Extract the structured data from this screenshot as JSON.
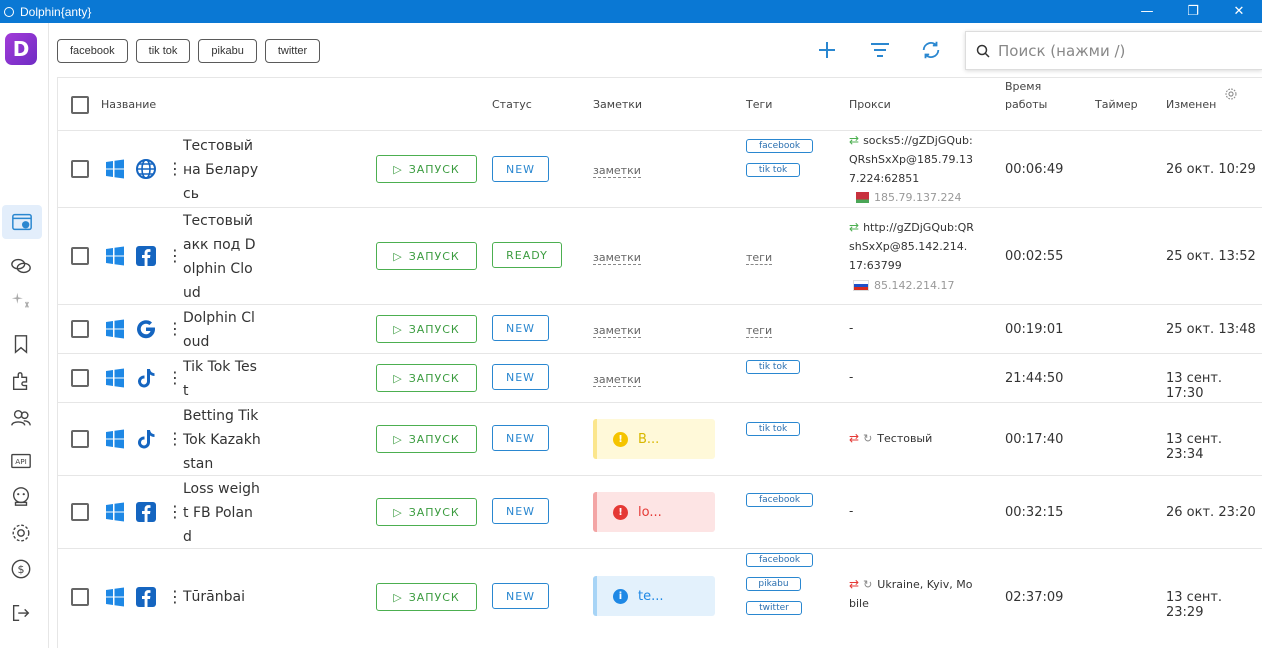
{
  "window": {
    "title": "Dolphin{anty}",
    "controls": [
      "—",
      "❐",
      "✕"
    ]
  },
  "sidebar": {
    "logo_letter": "D"
  },
  "tag_filters": [
    "facebook",
    "tik tok",
    "pikabu",
    "twitter"
  ],
  "search": {
    "placeholder": "Поиск (нажми /)"
  },
  "columns": {
    "name": "Название",
    "status": "Статус",
    "notes": "Заметки",
    "tags": "Теги",
    "proxy": "Прокси",
    "uptime_line1": "Время",
    "uptime_line2": "работы",
    "timer": "Таймер",
    "changed": "Изменен"
  },
  "run_label": "ЗАПУСК",
  "rows": [
    {
      "name": "Тестовый на Беларусь",
      "browser": "globe-icon",
      "status": "NEW",
      "note": "заметки",
      "tags": [
        "facebook",
        "tik tok"
      ],
      "proxy": "socks5://gZDjGQub:QRshSxXp@185.79.137.224:62851",
      "proxy_ip": "185.79.137.224",
      "flag": "by",
      "uptime": "00:06:49",
      "changed": "26 окт. 10:29"
    },
    {
      "name": "Тестовый акк под Dolphin Cloud",
      "browser": "facebook-icon",
      "status": "READY",
      "note": "заметки",
      "tags_text": "теги",
      "proxy": "http://gZDjGQub:QRshSxXp@85.142.214.17:63799",
      "proxy_ip": "85.142.214.17",
      "flag": "ru",
      "uptime": "00:02:55",
      "changed": "25 окт. 13:52"
    },
    {
      "name": "Dolphin Cloud",
      "browser": "google-icon",
      "status": "NEW",
      "note": "заметки",
      "tags_text": "теги",
      "proxy": "-",
      "uptime": "00:19:01",
      "changed": "25 окт. 13:48"
    },
    {
      "name": "Tik Tok Test",
      "browser": "tiktok-icon",
      "status": "NEW",
      "note": "заметки",
      "tags": [
        "tik tok"
      ],
      "proxy": "-",
      "uptime": "21:44:50",
      "changed": "13 сент. 17:30"
    },
    {
      "name": "Betting Tik Tok Kazakhstan",
      "browser": "tiktok-icon",
      "status": "NEW",
      "note_box": "B...",
      "note_color": "yellow",
      "tags": [
        "tik tok"
      ],
      "proxy": "Тестовый",
      "uptime": "00:17:40",
      "changed": "13 сент. 23:34"
    },
    {
      "name": "Loss weight FB Poland",
      "browser": "facebook-icon",
      "status": "NEW",
      "note_box": "lo...",
      "note_color": "red",
      "tags": [
        "facebook"
      ],
      "proxy": "-",
      "uptime": "00:32:15",
      "changed": "26 окт. 23:20"
    },
    {
      "name": "Tūrānbai",
      "browser": "facebook-icon",
      "status": "NEW",
      "note_box": "te...",
      "note_color": "blue",
      "tags": [
        "facebook",
        "pikabu",
        "twitter"
      ],
      "proxy": "Ukraine, Kyiv, Mobile",
      "uptime": "02:37:09",
      "changed": "13 сент. 23:29"
    }
  ],
  "colors": {
    "accent": "#0a78d4",
    "run_green": "#4caf50",
    "status_blue": "#2a87d0"
  }
}
